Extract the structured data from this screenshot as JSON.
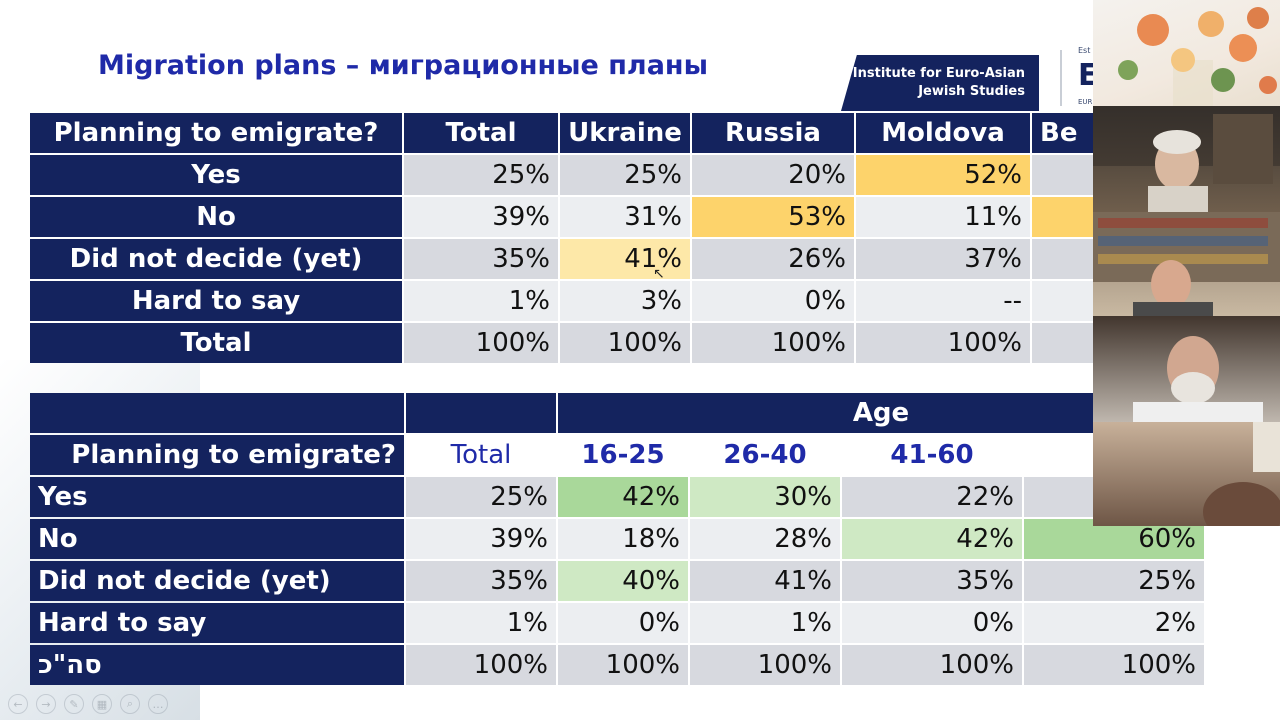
{
  "slide": {
    "title": "Migration plans – миграционные планы",
    "logo_text_line1": "Institute for Euro-Asian",
    "logo_text_line2": "Jewish Studies",
    "logo_mark_small": "Est",
    "logo_mark_big": "E",
    "logo_mark_sub": "EUR"
  },
  "table1": {
    "headers": [
      "Planning to emigrate?",
      "Total",
      "Ukraine",
      "Russia",
      "Moldova",
      "Be"
    ],
    "rows": [
      {
        "label": "Yes",
        "values": [
          "25%",
          "25%",
          "20%",
          "52%",
          ""
        ]
      },
      {
        "label": "No",
        "values": [
          "39%",
          "31%",
          "53%",
          "11%",
          ""
        ]
      },
      {
        "label": "Did not decide (yet)",
        "values": [
          "35%",
          "41%",
          "26%",
          "37%",
          ""
        ]
      },
      {
        "label": "Hard to say",
        "values": [
          "1%",
          "3%",
          "0%",
          "--",
          ""
        ]
      },
      {
        "label": "Total",
        "values": [
          "100%",
          "100%",
          "100%",
          "100%",
          ""
        ]
      }
    ]
  },
  "table2": {
    "group_header": "Age",
    "question": "Planning to emigrate?",
    "headers": [
      "Total",
      "16-25",
      "26-40",
      "41-60",
      ""
    ],
    "rows": [
      {
        "label": "Yes",
        "values": [
          "25%",
          "42%",
          "30%",
          "22%",
          ""
        ]
      },
      {
        "label": "No",
        "values": [
          "39%",
          "18%",
          "28%",
          "42%",
          "60%"
        ]
      },
      {
        "label": "Did not decide (yet)",
        "values": [
          "35%",
          "40%",
          "41%",
          "35%",
          "25%"
        ]
      },
      {
        "label": "Hard to say",
        "values": [
          "1%",
          "0%",
          "1%",
          "0%",
          "2%"
        ]
      },
      {
        "label": "סה\"כ",
        "values": [
          "100%",
          "100%",
          "100%",
          "100%",
          "100%"
        ]
      }
    ]
  },
  "colors": {
    "header_navy": "#14235e",
    "title_blue": "#1f2aa8",
    "highlight_yellow": "#fdd36b",
    "highlight_green": "#a9d89a"
  },
  "video_tiles": [
    "participant-1",
    "participant-2",
    "participant-3",
    "participant-4",
    "participant-5"
  ]
}
